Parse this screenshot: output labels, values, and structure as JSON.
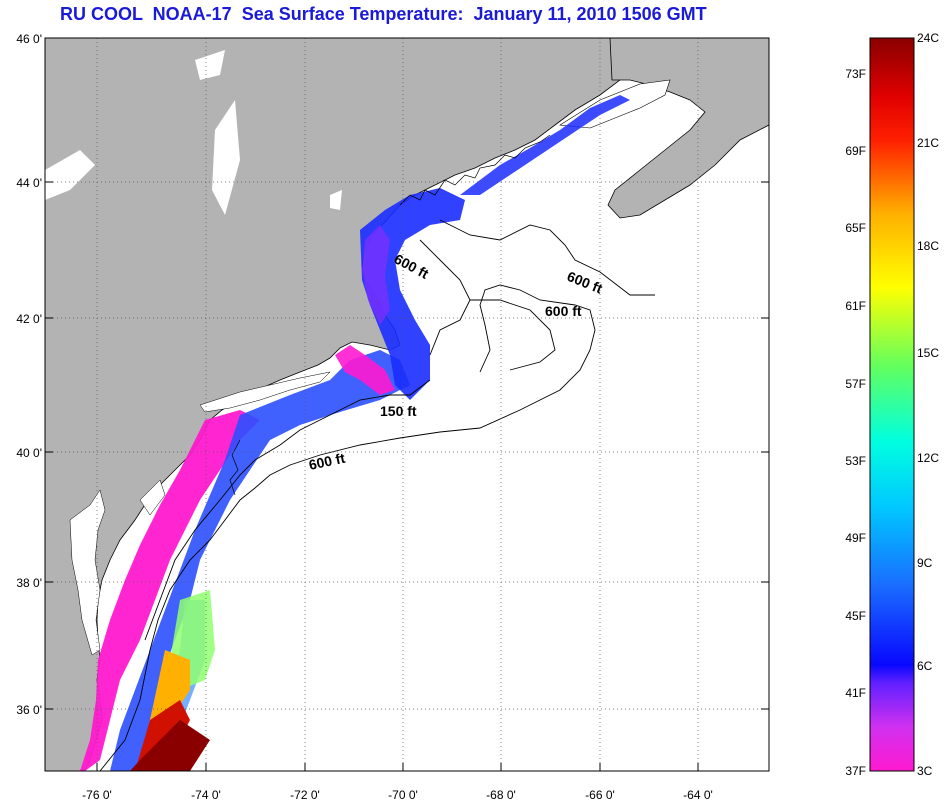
{
  "title": "RU COOL  NOAA-17  Sea Surface Temperature:  January 11, 2010 1506 GMT",
  "map": {
    "lat_ticks": [
      "46 0'",
      "44 0'",
      "42 0'",
      "40 0'",
      "38 0'",
      "36 0'"
    ],
    "lon_ticks": [
      "-76 0'",
      "-74 0'",
      "-72 0'",
      "-70 0'",
      "-68 0'",
      "-66 0'",
      "-64 0'"
    ],
    "contour_labels": [
      "600 ft",
      "600 ft",
      "600 ft",
      "150 ft",
      "600 ft"
    ],
    "colors": {
      "land": "#b3b3b3",
      "ocean_no_data": "#ffffff",
      "coast": "#000000"
    }
  },
  "colorbar": {
    "fahrenheit": [
      "73F",
      "69F",
      "65F",
      "61F",
      "57F",
      "53F",
      "49F",
      "45F",
      "41F",
      "37F"
    ],
    "celsius": [
      "24C",
      "21C",
      "18C",
      "15C",
      "12C",
      "9C",
      "6C",
      "3C"
    ],
    "gradient": [
      "#ff1ad0",
      "#b040ff",
      "#1010ff",
      "#1a7aff",
      "#00e8ff",
      "#30ff90",
      "#ffff00",
      "#ff9a00",
      "#ff0000",
      "#8a0000"
    ]
  }
}
